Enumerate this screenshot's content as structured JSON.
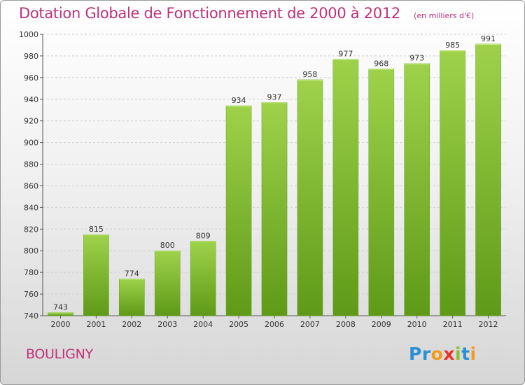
{
  "title": "Dotation Globale de Fonctionnement de 2000 à 2012",
  "unit": "(en milliers d'€)",
  "commune": "BOULIGNY",
  "logo": {
    "text": "Proxiti",
    "letters": [
      "P",
      "r",
      "o",
      "x",
      "i",
      "t",
      "i"
    ],
    "colors": [
      "#2a8fd6",
      "#2a8fd6",
      "#f29a1a",
      "#e8352b",
      "#8bbf2a",
      "#2a8fd6",
      "#f29a1a"
    ]
  },
  "colors": {
    "bar": "#7ab828",
    "bar_light": "#9fd24a",
    "bar_dark": "#5e9a18",
    "title": "#c0307a",
    "grid": "#cfcfcf",
    "axis": "#555555"
  },
  "chart_data": {
    "type": "bar",
    "categories": [
      "2000",
      "2001",
      "2002",
      "2003",
      "2004",
      "2005",
      "2006",
      "2007",
      "2008",
      "2009",
      "2010",
      "2011",
      "2012"
    ],
    "values": [
      743,
      815,
      774,
      800,
      809,
      934,
      937,
      958,
      977,
      968,
      973,
      985,
      991
    ],
    "title": "Dotation Globale de Fonctionnement de 2000 à 2012",
    "ylabel": "",
    "xlabel": "",
    "ylim": [
      740,
      1000
    ],
    "yticks": [
      740,
      760,
      780,
      800,
      820,
      840,
      860,
      880,
      900,
      920,
      940,
      960,
      980,
      1000
    ],
    "grid": true,
    "data_labels": true
  }
}
